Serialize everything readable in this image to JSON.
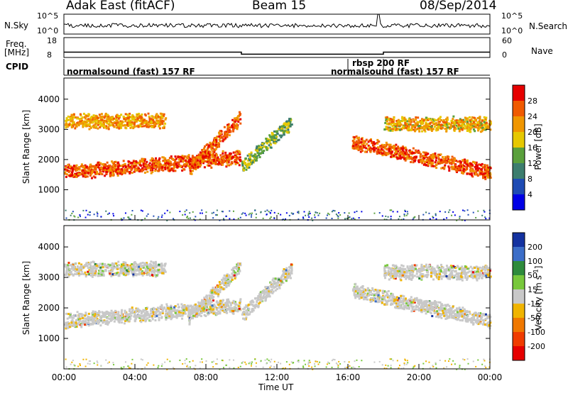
{
  "header": {
    "station": "Adak East (fitACF)",
    "beam": "Beam 15",
    "date": "08/Sep/2014"
  },
  "params": {
    "nsky_label": "N.Sky",
    "nsearch_label": "N.Search",
    "freq_label": "Freq.",
    "freq_unit": "[MHz]",
    "nave_label": "Nave",
    "cpid_label": "CPID",
    "nsky_ticks": [
      "10^5",
      "10^0"
    ],
    "nsearch_ticks": [
      "10^5",
      "10^0"
    ],
    "freq_ticks": [
      "18",
      "8"
    ],
    "nave_ticks": [
      "60",
      "0"
    ],
    "freq_series_mhz": [
      {
        "t": 0,
        "f": 10.5
      },
      {
        "t": 10.0,
        "f": 10.5
      },
      {
        "t": 10.0,
        "f": 9.4
      },
      {
        "t": 18.0,
        "f": 9.4
      },
      {
        "t": 18.0,
        "f": 10.5
      },
      {
        "t": 24.0,
        "f": 10.5
      }
    ],
    "cpid_segments": [
      {
        "label": "normalsound (fast) 157 RF",
        "start": 0.0,
        "end": 16.0
      },
      {
        "label": "rbsp 200 RF",
        "start": 16.0,
        "end": 18.0
      },
      {
        "label": "normalsound (fast) 157 RF",
        "start": 18.0,
        "end": 22.0
      }
    ]
  },
  "chart_data": [
    {
      "type": "heatmap",
      "title": "",
      "xlabel": "Time UT",
      "ylabel": "Slant Range [km]",
      "xlim": [
        0,
        24
      ],
      "ylim": [
        0,
        4700
      ],
      "x_ticks": [
        "00:00",
        "04:00",
        "08:00",
        "12:00",
        "16:00",
        "20:00",
        "00:00"
      ],
      "y_ticks": [
        1000,
        2000,
        3000,
        4000
      ],
      "colorbar": {
        "label": "Power [dB]",
        "ticks": [
          4,
          8,
          12,
          16,
          20,
          24,
          28
        ],
        "colors": [
          "#0000e6",
          "#1e4bb4",
          "#3c7d6e",
          "#5aa03c",
          "#e6c800",
          "#f09600",
          "#f05a00",
          "#e60000"
        ]
      },
      "features": [
        {
          "name": "lower band",
          "t_start": 0.0,
          "t_end": 9.9,
          "range_start": 1600,
          "range_end": 2100,
          "peak_db": 28
        },
        {
          "name": "upper band",
          "t_start": 0.0,
          "t_end": 5.7,
          "range_start": 3300,
          "range_end": 3300,
          "peak_db": 24
        },
        {
          "name": "rising trace",
          "t_start": 7.0,
          "t_end": 9.9,
          "range_start": 1700,
          "range_end": 3400,
          "peak_db": 28
        },
        {
          "name": "post-midday arc",
          "t_start": 10.0,
          "t_end": 12.8,
          "range_start": 1800,
          "range_end": 3300,
          "peak_db": 16
        },
        {
          "name": "evening lower band",
          "t_start": 16.2,
          "t_end": 24.0,
          "range_start": 2600,
          "range_end": 1600,
          "peak_db": 28
        },
        {
          "name": "evening upper band",
          "t_start": 18.0,
          "t_end": 24.0,
          "range_start": 3200,
          "range_end": 3200,
          "peak_db": 22
        }
      ]
    },
    {
      "type": "heatmap",
      "title": "",
      "xlabel": "Time UT",
      "ylabel": "Slant Range [km]",
      "xlim": [
        0,
        24
      ],
      "ylim": [
        0,
        4700
      ],
      "x_ticks": [
        "00:00",
        "04:00",
        "08:00",
        "12:00",
        "16:00",
        "20:00",
        "00:00"
      ],
      "y_ticks": [
        1000,
        2000,
        3000,
        4000
      ],
      "colorbar": {
        "label": "Velocity [m s",
        "label_sup": "-1",
        "label_close": "]",
        "ticks": [
          200,
          100,
          50,
          15,
          -15,
          -50,
          -100,
          -200
        ],
        "colors": [
          "#1432a0",
          "#3c6ec8",
          "#2e8b3c",
          "#78c83c",
          "#c8c8c8",
          "#f0b400",
          "#f07800",
          "#f03c00",
          "#e60000"
        ]
      },
      "features": [
        {
          "name": "lower band",
          "t_start": 0.0,
          "t_end": 9.9,
          "range_start": 1600,
          "range_end": 2100,
          "typical_velocity": 0
        },
        {
          "name": "upper band",
          "t_start": 0.0,
          "t_end": 5.7,
          "range_start": 3300,
          "range_end": 3300,
          "typical_velocity": 0
        },
        {
          "name": "rising trace",
          "t_start": 7.0,
          "t_end": 9.9,
          "range_start": 1700,
          "range_end": 3400,
          "typical_velocity": -30
        },
        {
          "name": "post-midday arc",
          "t_start": 10.0,
          "t_end": 12.8,
          "range_start": 1800,
          "range_end": 3300,
          "typical_velocity": -40
        },
        {
          "name": "evening lower band",
          "t_start": 16.2,
          "t_end": 24.0,
          "range_start": 2600,
          "range_end": 1600,
          "typical_velocity": 0
        },
        {
          "name": "evening upper band",
          "t_start": 18.0,
          "t_end": 24.0,
          "range_start": 3200,
          "range_end": 3200,
          "typical_velocity": 0
        }
      ]
    }
  ]
}
